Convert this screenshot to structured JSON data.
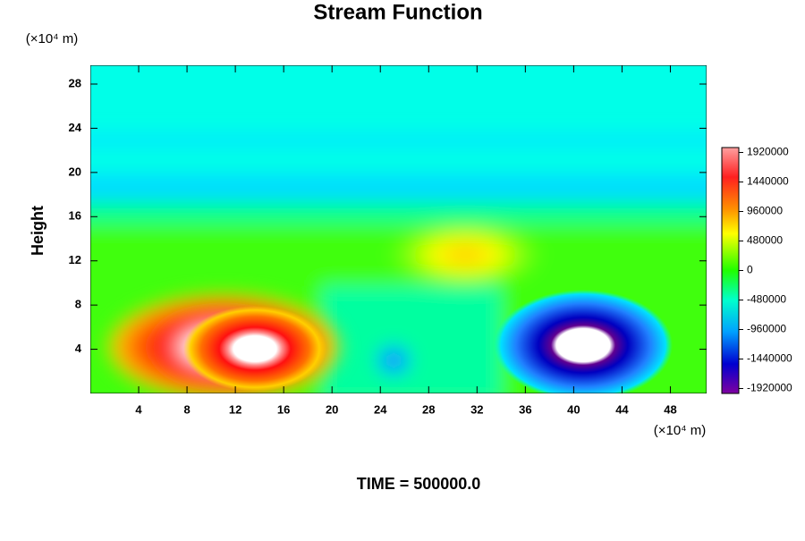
{
  "chart_data": {
    "type": "contour",
    "title": "Stream Function",
    "ylabel": "Height",
    "yunit": "(×10⁴ m)",
    "xunit": "(×10⁴ m)",
    "xlim": [
      0,
      51
    ],
    "xticks": [
      4,
      8,
      12,
      16,
      20,
      24,
      28,
      32,
      36,
      40,
      44,
      48
    ],
    "ylim": [
      0,
      29.7
    ],
    "yticks": [
      4,
      8,
      12,
      16,
      20,
      24,
      28
    ],
    "colorbar": {
      "lim": [
        -2000000,
        2000000
      ],
      "ticks": [
        1920000,
        1440000,
        960000,
        480000,
        0,
        -480000,
        -960000,
        -1440000,
        -1920000
      ]
    },
    "footer": "TIME = 500000.0"
  }
}
